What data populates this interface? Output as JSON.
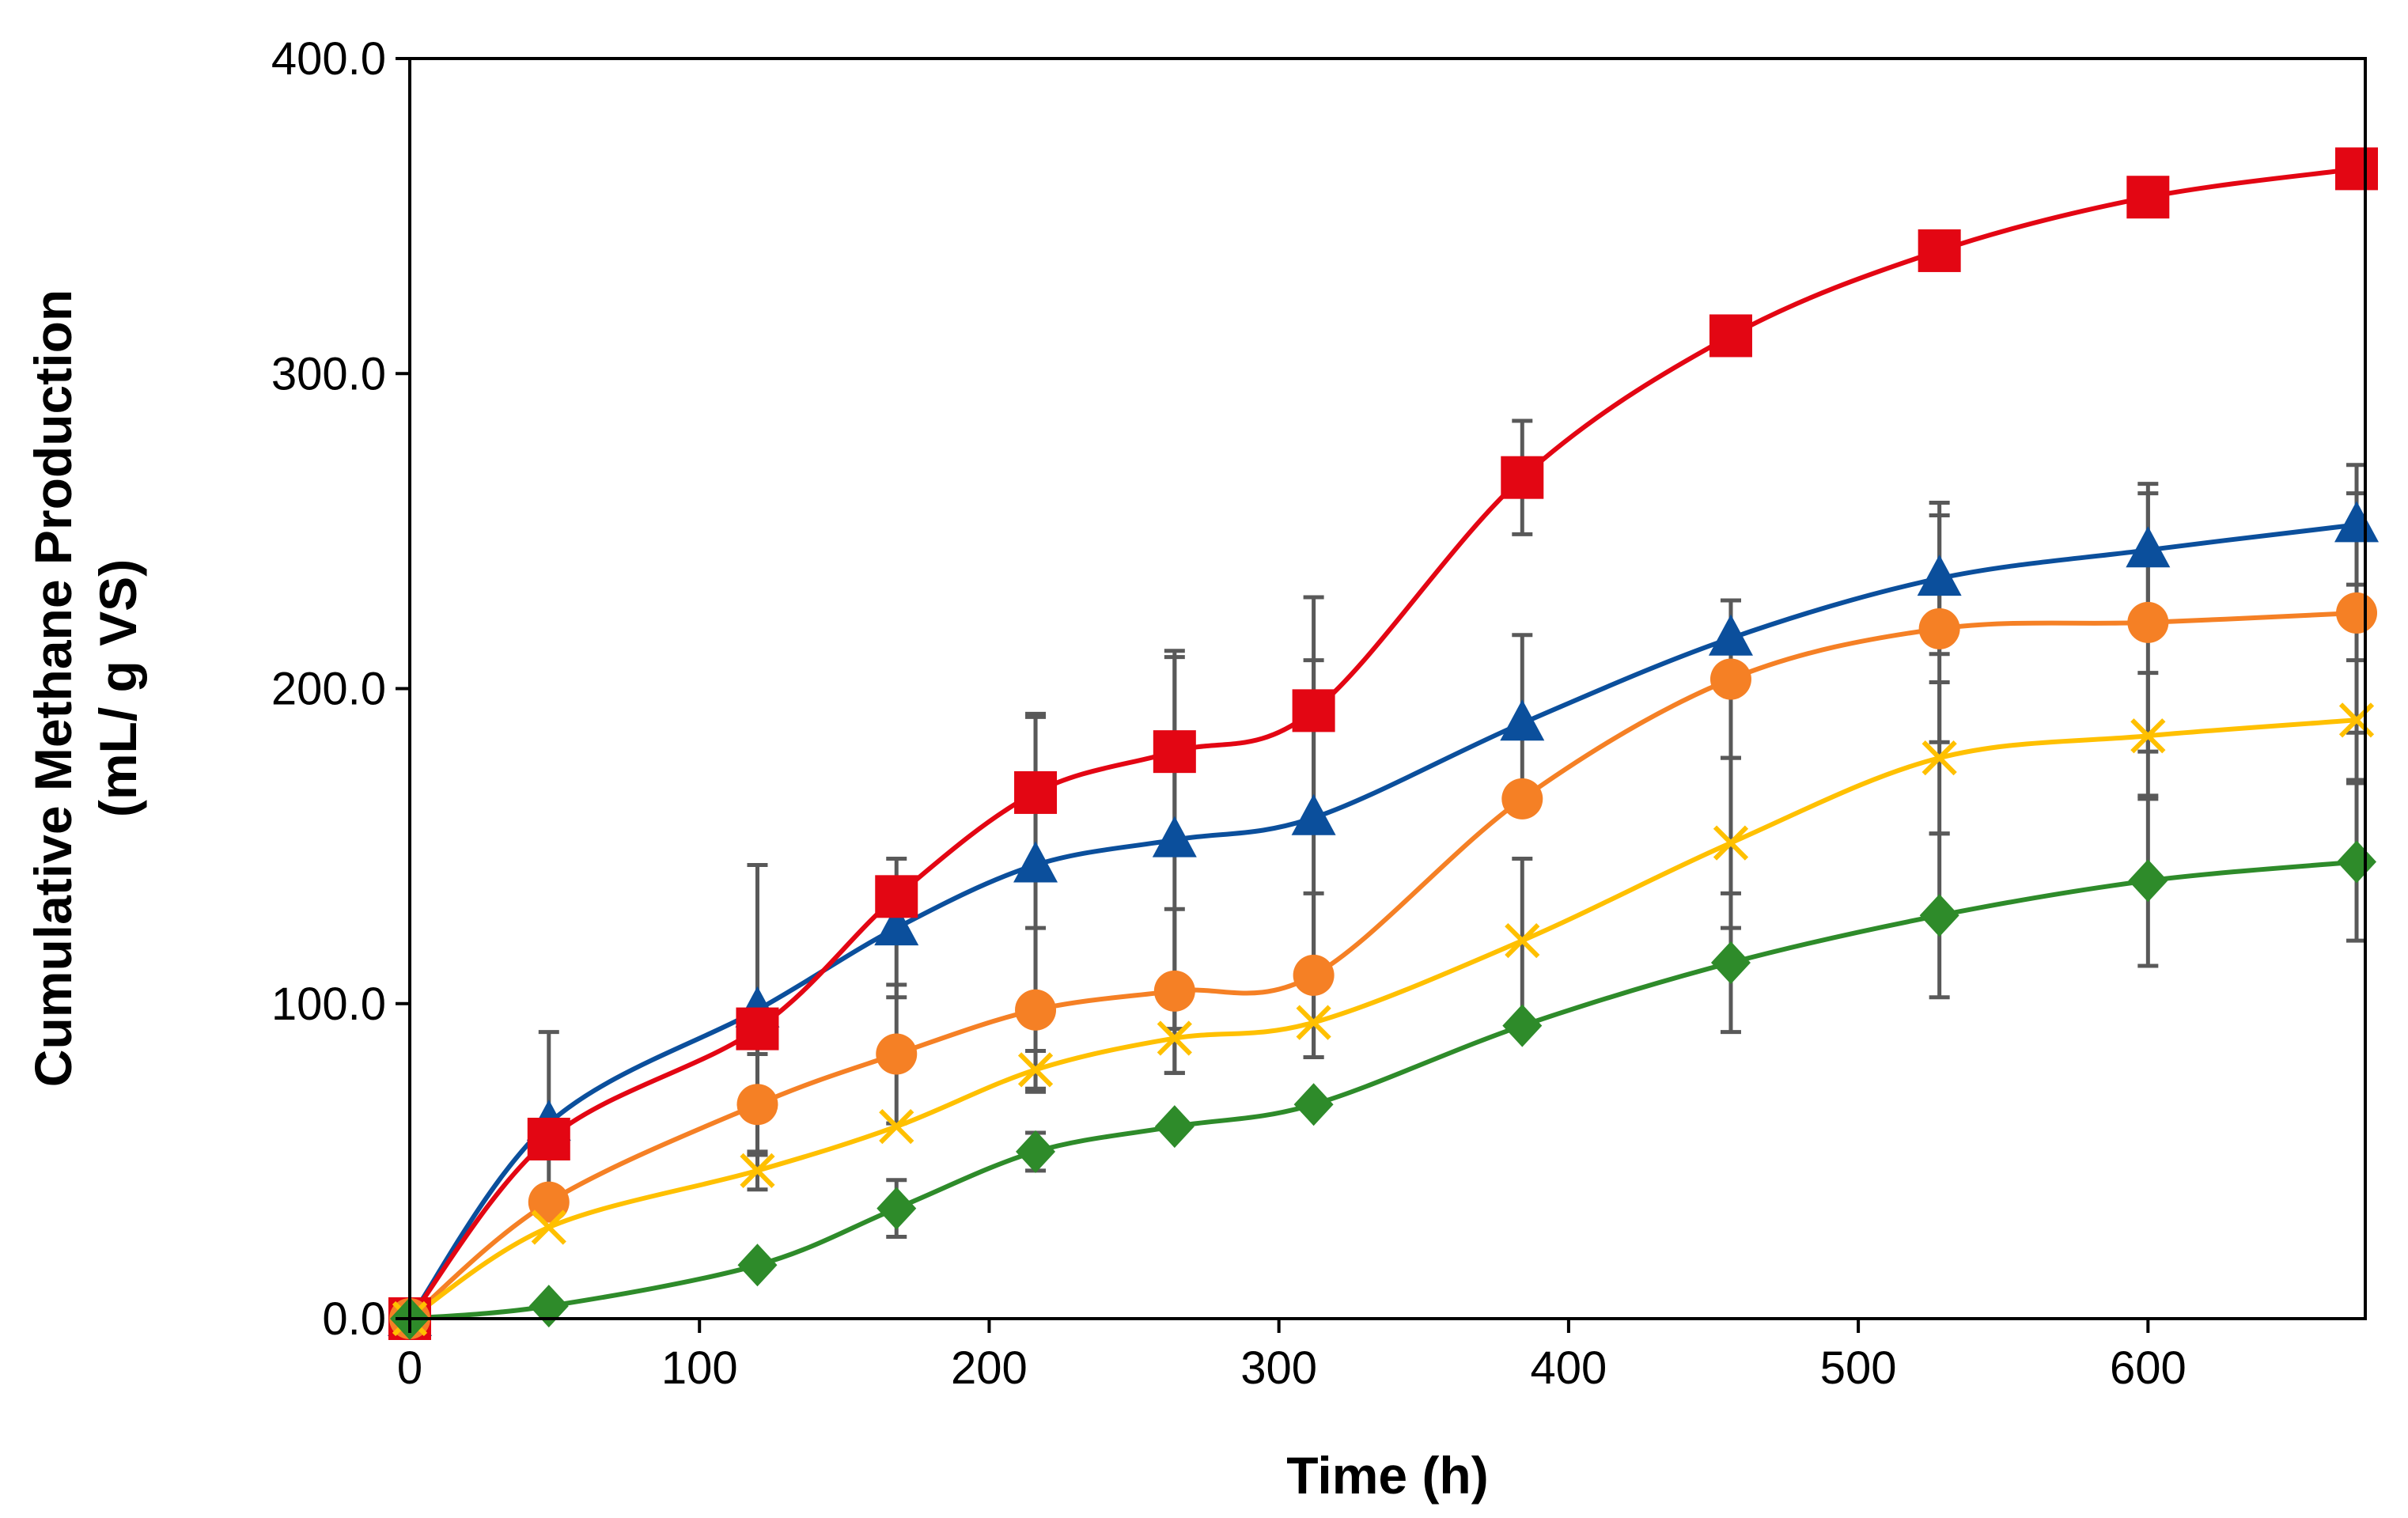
{
  "chart_data": {
    "type": "line",
    "title": "",
    "xlabel": "Time (h)",
    "ylabel_line1": "Cumulative Methane Production",
    "ylabel_line2": "(mL/ g VS)",
    "xlim": [
      0,
      675
    ],
    "ylim": [
      0,
      400
    ],
    "xticks": [
      0,
      100,
      200,
      300,
      400,
      500,
      600
    ],
    "xtick_labels": [
      "0",
      "100",
      "200",
      "300",
      "400",
      "500",
      "600"
    ],
    "yticks": [
      0,
      100,
      200,
      300,
      400
    ],
    "ytick_labels": [
      "0.0",
      "100.0",
      "200.0",
      "300.0",
      "400.0"
    ],
    "grid": false,
    "legend": "none",
    "x": [
      0,
      48,
      120,
      168,
      216,
      264,
      312,
      384,
      456,
      528,
      600,
      672
    ],
    "series": [
      {
        "name": "triangle series",
        "color": "#0B4F9C",
        "marker": "triangle",
        "values": [
          0,
          62,
          98,
          124,
          144,
          152,
          159,
          189,
          216,
          235,
          244,
          252
        ],
        "errors": [
          0,
          29,
          46,
          22,
          48,
          60,
          50,
          28,
          12,
          24,
          21,
          19
        ]
      },
      {
        "name": "square series",
        "color": "#E30613",
        "marker": "square",
        "values": [
          0,
          57,
          92,
          134,
          167,
          180,
          193,
          267,
          312,
          339,
          356,
          365
        ],
        "errors": [
          0,
          0,
          0,
          0,
          24,
          30,
          36,
          18,
          5,
          0,
          0,
          0
        ]
      },
      {
        "name": "circle series",
        "color": "#F58025",
        "marker": "circle",
        "values": [
          0,
          37,
          68,
          84,
          98,
          104,
          109,
          165,
          203,
          219,
          221,
          224
        ],
        "errors": [
          0,
          0,
          16,
          22,
          26,
          26,
          26,
          0,
          25,
          36,
          41,
          38
        ]
      },
      {
        "name": "x series",
        "color": "#FFC000",
        "marker": "x",
        "values": [
          0,
          29,
          47,
          61,
          79,
          89,
          94,
          120,
          151,
          178,
          185,
          190
        ],
        "errors": [
          0,
          0,
          6,
          0,
          6,
          11,
          11,
          26,
          27,
          24,
          20,
          19
        ]
      },
      {
        "name": "diamond series",
        "color": "#2E8B2A",
        "marker": "diamond",
        "values": [
          0,
          4,
          17,
          35,
          53,
          61,
          68,
          93,
          113,
          128,
          139,
          145
        ],
        "errors": [
          0,
          0,
          0,
          9,
          6,
          0,
          0,
          0,
          22,
          26,
          27,
          25
        ]
      }
    ]
  }
}
